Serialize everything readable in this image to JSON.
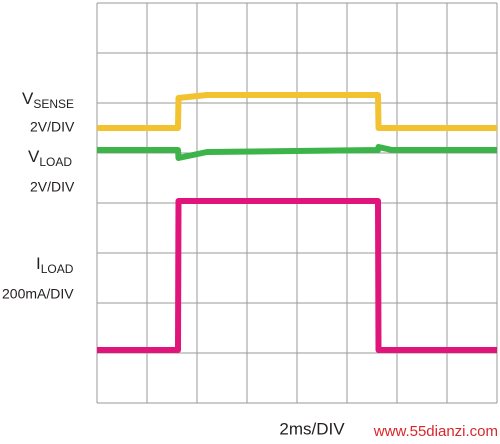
{
  "chart_data": {
    "type": "line",
    "x_label": "2ms/DIV",
    "annotations": [
      {
        "main": "V",
        "sub": "SENSE",
        "scale": "2V/DIV"
      },
      {
        "main": "V",
        "sub": "LOAD",
        "scale": "2V/DIV"
      },
      {
        "main": "I",
        "sub": "LOAD",
        "scale": "200mA/DIV"
      }
    ],
    "watermark": "www.55dianzi.com",
    "xlim": [
      0,
      8
    ],
    "ylim": [
      0,
      8
    ],
    "xticks": [
      0,
      1,
      2,
      3,
      4,
      5,
      6,
      7,
      8
    ],
    "yticks": [
      0,
      1,
      2,
      3,
      4,
      5,
      6,
      7,
      8
    ],
    "grid": true,
    "x": [
      0,
      1.62,
      1.63,
      2.2,
      5.62,
      5.63,
      5.9,
      8
    ],
    "series": [
      {
        "color": "#f2c230",
        "values": [
          5.5,
          5.5,
          6.1,
          6.16,
          6.16,
          5.5,
          5.5,
          5.5
        ]
      },
      {
        "color": "#3cb44a",
        "values": [
          5.06,
          5.06,
          4.9,
          5.02,
          5.06,
          5.12,
          5.06,
          5.06
        ]
      },
      {
        "color": "#e0147a",
        "values": [
          1.06,
          1.06,
          4.04,
          4.04,
          4.04,
          1.06,
          1.06,
          1.06
        ]
      }
    ]
  }
}
